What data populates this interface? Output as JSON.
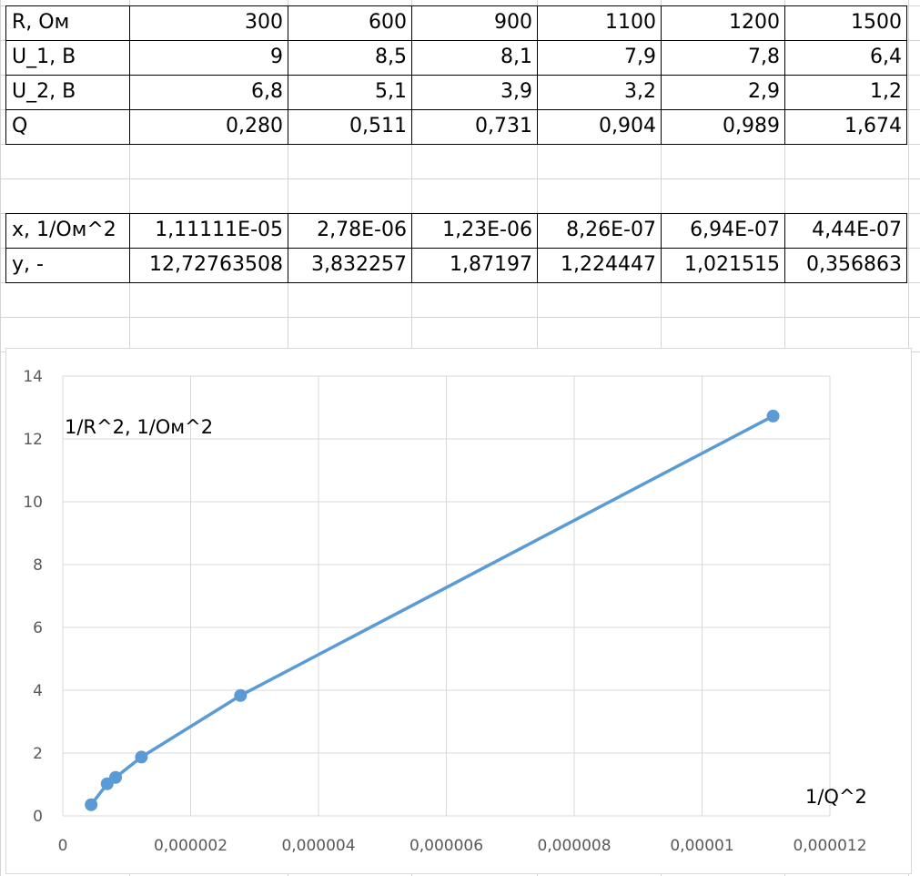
{
  "table_top": {
    "rows": [
      {
        "label": "R, Ом",
        "values": [
          "300",
          "600",
          "900",
          "1100",
          "1200",
          "1500"
        ]
      },
      {
        "label": "U_1, В",
        "values": [
          "9",
          "8,5",
          "8,1",
          "7,9",
          "7,8",
          "6,4"
        ]
      },
      {
        "label": "U_2, В",
        "values": [
          "6,8",
          "5,1",
          "3,9",
          "3,2",
          "2,9",
          "1,2"
        ]
      },
      {
        "label": "Q",
        "values": [
          "0,280",
          "0,511",
          "0,731",
          "0,904",
          "0,989",
          "1,674"
        ]
      }
    ]
  },
  "table_bottom": {
    "rows": [
      {
        "label": "x, 1/Ом^2",
        "values": [
          "1,11111E-05",
          "2,78E-06",
          "1,23E-06",
          "8,26E-07",
          "6,94E-07",
          "4,44E-07"
        ]
      },
      {
        "label": "y, -",
        "values": [
          "12,72763508",
          "3,832257",
          "1,87197",
          "1,224447",
          "1,021515",
          "0,356863"
        ]
      }
    ]
  },
  "chart_data": {
    "type": "line",
    "title": "",
    "ylabel": "1/R^2, 1/Ом^2",
    "xlabel": "1/Q^2",
    "xlim": [
      0,
      1.2e-05
    ],
    "ylim": [
      0,
      14
    ],
    "x_ticks": [
      "0",
      "0,000002",
      "0,000004",
      "0,000006",
      "0,000008",
      "0,00001",
      "0,000012"
    ],
    "y_ticks": [
      "0",
      "2",
      "4",
      "6",
      "8",
      "10",
      "12",
      "14"
    ],
    "grid": true,
    "series": [
      {
        "color": "#5b9bd5",
        "x": [
          1.11111e-05,
          2.78e-06,
          1.23e-06,
          8.26e-07,
          6.94e-07,
          4.44e-07
        ],
        "y": [
          12.72763508,
          3.832257,
          1.87197,
          1.224447,
          1.021515,
          0.356863
        ]
      }
    ]
  }
}
